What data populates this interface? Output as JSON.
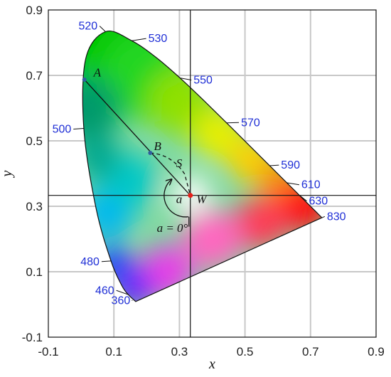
{
  "chart_data": {
    "type": "scatter",
    "title": "",
    "xlabel": "x",
    "ylabel": "y",
    "xlim": [
      -0.1,
      0.9
    ],
    "ylim": [
      -0.1,
      0.9
    ],
    "xticks": [
      "-0.1",
      "0.1",
      "0.3",
      "0.5",
      "0.7",
      "0.9"
    ],
    "yticks": [
      "-0.1",
      "0.1",
      "0.3",
      "0.5",
      "0.7",
      "0.9"
    ],
    "grid": true,
    "locus": [
      {
        "x": 0.1666,
        "y": 0.0089
      },
      {
        "x": 0.144,
        "y": 0.0297
      },
      {
        "x": 0.1241,
        "y": 0.0578
      },
      {
        "x": 0.0913,
        "y": 0.1327
      },
      {
        "x": 0.0454,
        "y": 0.295
      },
      {
        "x": 0.0082,
        "y": 0.5384
      },
      {
        "x": 0.0139,
        "y": 0.7502
      },
      {
        "x": 0.0743,
        "y": 0.8338
      },
      {
        "x": 0.1547,
        "y": 0.8059
      },
      {
        "x": 0.2296,
        "y": 0.7543
      },
      {
        "x": 0.3016,
        "y": 0.6923
      },
      {
        "x": 0.3731,
        "y": 0.6245
      },
      {
        "x": 0.4441,
        "y": 0.5547
      },
      {
        "x": 0.5125,
        "y": 0.4866
      },
      {
        "x": 0.5752,
        "y": 0.4242
      },
      {
        "x": 0.627,
        "y": 0.3725
      },
      {
        "x": 0.6658,
        "y": 0.334
      },
      {
        "x": 0.6915,
        "y": 0.3083
      },
      {
        "x": 0.7347,
        "y": 0.2653
      }
    ],
    "wavelength_labels": [
      {
        "text": "360",
        "x": 0.155,
        "y": 0.013,
        "tx": 0.15,
        "ty": 0.001,
        "anchor": "end"
      },
      {
        "text": "460",
        "x": 0.144,
        "y": 0.03,
        "tx": 0.101,
        "ty": 0.032,
        "anchor": "end"
      },
      {
        "text": "480",
        "x": 0.091,
        "y": 0.133,
        "tx": 0.056,
        "ty": 0.12,
        "anchor": "end"
      },
      {
        "text": "500",
        "x": 0.008,
        "y": 0.538,
        "tx": -0.03,
        "ty": 0.525,
        "anchor": "end"
      },
      {
        "text": "520",
        "x": 0.074,
        "y": 0.834,
        "tx": 0.05,
        "ty": 0.84,
        "anchor": "end"
      },
      {
        "text": "530",
        "x": 0.155,
        "y": 0.806,
        "tx": 0.205,
        "ty": 0.802,
        "anchor": "start"
      },
      {
        "text": "550",
        "x": 0.302,
        "y": 0.692,
        "tx": 0.343,
        "ty": 0.675,
        "anchor": "start"
      },
      {
        "text": "570",
        "x": 0.444,
        "y": 0.555,
        "tx": 0.488,
        "ty": 0.545,
        "anchor": "start"
      },
      {
        "text": "590",
        "x": 0.575,
        "y": 0.424,
        "tx": 0.61,
        "ty": 0.415,
        "anchor": "start"
      },
      {
        "text": "610",
        "x": 0.627,
        "y": 0.372,
        "tx": 0.672,
        "ty": 0.355,
        "anchor": "start"
      },
      {
        "text": "630",
        "x": 0.666,
        "y": 0.334,
        "tx": 0.695,
        "ty": 0.305,
        "anchor": "start"
      },
      {
        "text": "830",
        "x": 0.735,
        "y": 0.265,
        "tx": 0.75,
        "ty": 0.258,
        "anchor": "start"
      }
    ],
    "points": [
      {
        "label": "A",
        "x": 0.01,
        "y": 0.687,
        "color": "#2f5f9e",
        "lx": 0.038,
        "ly": 0.697
      },
      {
        "label": "B",
        "x": 0.211,
        "y": 0.463,
        "color": "#2f5f9e",
        "lx": 0.222,
        "ly": 0.472
      },
      {
        "label": "W",
        "x": 0.3333,
        "y": 0.3333,
        "color": "#e8201a",
        "lx": 0.352,
        "ly": 0.31
      }
    ],
    "annotations": [
      {
        "text": "S",
        "x": 0.29,
        "y": 0.42
      },
      {
        "text": "a",
        "x": 0.29,
        "y": 0.31
      },
      {
        "text": "a = 0°",
        "x": 0.231,
        "y": 0.222
      }
    ],
    "lines": {
      "horizontal_y": 0.3333,
      "vertical_x": 0.3333
    },
    "colors": {
      "wavelength_text": "#1f2fd6",
      "point_blue": "#2f5f9e",
      "white_point": "#e8201a"
    }
  }
}
